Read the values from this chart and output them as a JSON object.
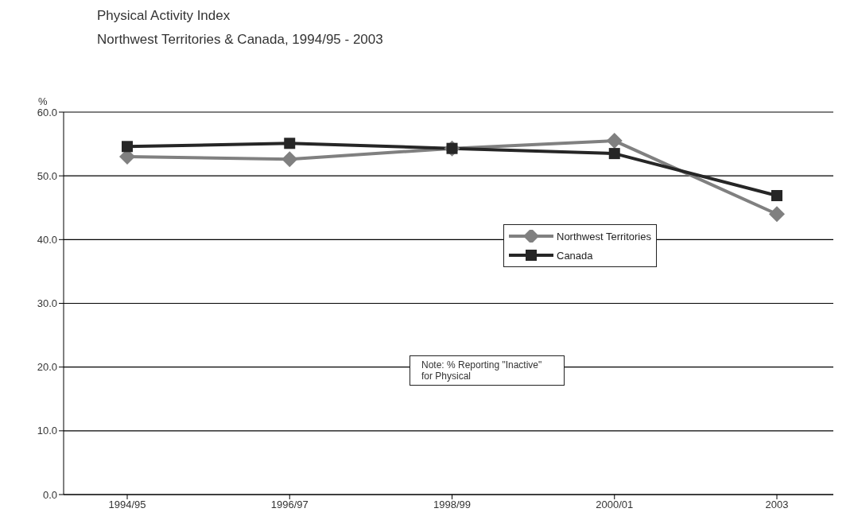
{
  "chart_data": {
    "type": "line",
    "title": "Physical Activity Index",
    "subtitle": "Northwest Territories & Canada, 1994/95 - 2003",
    "ylabel": "%",
    "categories": [
      "1994/95",
      "1996/97",
      "1998/99",
      "2000/01",
      "2003"
    ],
    "series": [
      {
        "name": "Northwest Territories",
        "color": "#808080",
        "marker": "diamond",
        "values": [
          53.0,
          52.6,
          54.3,
          55.5,
          44.0
        ]
      },
      {
        "name": "Canada",
        "color": "#262626",
        "marker": "square",
        "values": [
          54.6,
          55.1,
          54.3,
          53.5,
          46.9
        ]
      }
    ],
    "ylim": [
      0,
      60
    ],
    "yticks": [
      {
        "value": 0,
        "label": "0.0"
      },
      {
        "value": 10,
        "label": "10.0"
      },
      {
        "value": 20,
        "label": "20.0"
      },
      {
        "value": 30,
        "label": "30.0"
      },
      {
        "value": 40,
        "label": "40.0"
      },
      {
        "value": 50,
        "label": "50.0"
      },
      {
        "value": 60,
        "label": "60.0"
      }
    ],
    "grid": "y",
    "legend": "right",
    "line_style": "solid",
    "annotations": [
      "Note: % Reporting \"Inactive\" for Physical"
    ]
  }
}
